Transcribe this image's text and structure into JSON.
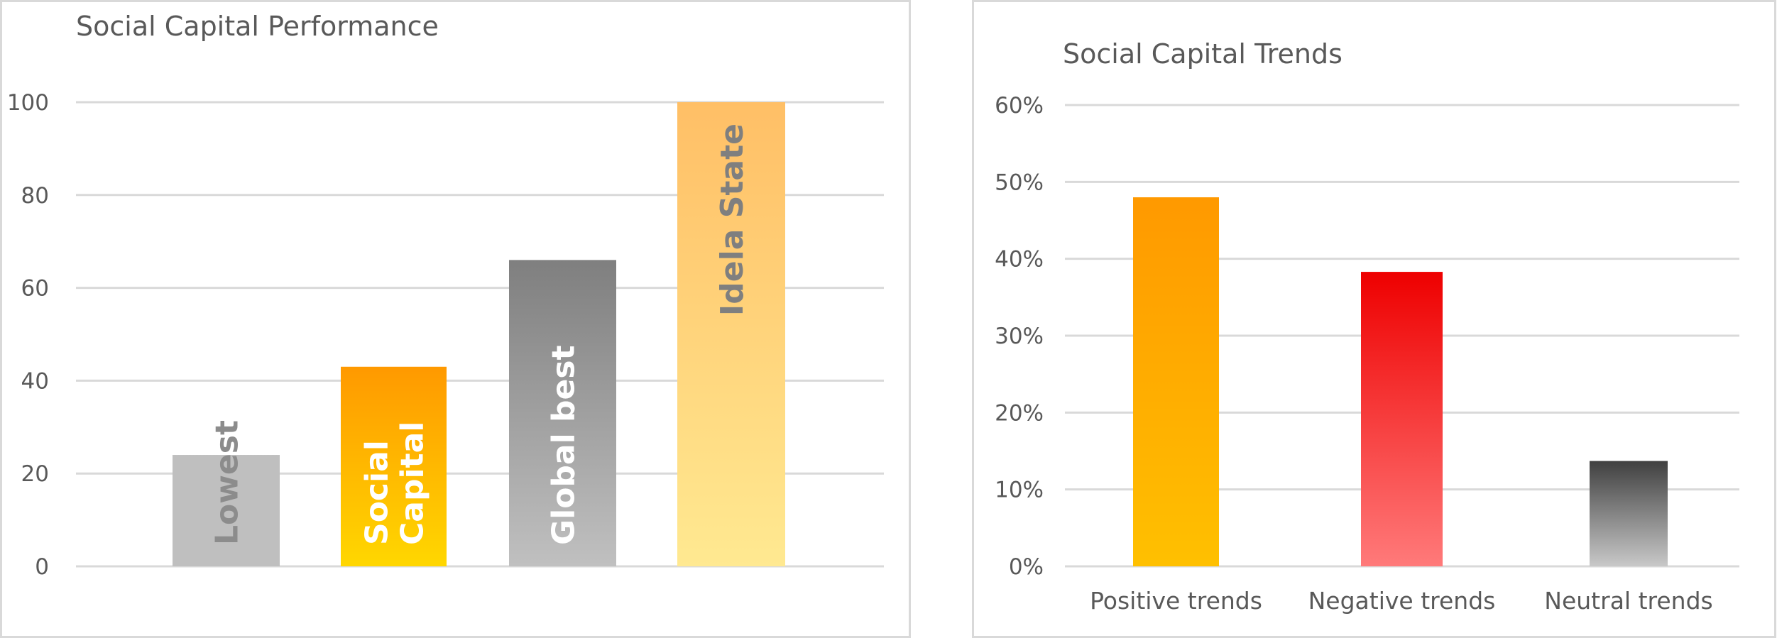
{
  "chart_data": [
    {
      "type": "bar",
      "title": "Social Capital Performance",
      "categories": [
        "Lowest",
        "Social Capital",
        "Global best",
        "Idela State"
      ],
      "category_label_lines": [
        [
          "Lowest"
        ],
        [
          "Social",
          "Capital"
        ],
        [
          "Global best"
        ],
        [
          "Idela State"
        ]
      ],
      "values": [
        24,
        43,
        66,
        100
      ],
      "ylim": [
        0,
        100
      ],
      "yticks": [
        0,
        20,
        40,
        60,
        80,
        100
      ],
      "ytick_labels": [
        "0",
        "20",
        "40",
        "60",
        "80",
        "100"
      ],
      "grid": true,
      "labels_inside_bars": true,
      "colors": [
        {
          "top": "#bfbfbf",
          "bottom": "#bfbfbf",
          "label": "#8c8c8c"
        },
        {
          "top": "#ff9900",
          "bottom": "#ffd700",
          "label": "#ffffff"
        },
        {
          "top": "#7f7f7f",
          "bottom": "#c0c0c0",
          "label": "#ffffff"
        },
        {
          "top": "#ffbf66",
          "bottom": "#ffe991",
          "label": "#7f7f7f"
        }
      ]
    },
    {
      "type": "bar",
      "title": "Social Capital Trends",
      "categories": [
        "Positive trends",
        "Negative trends",
        "Neutral trends"
      ],
      "values": [
        48,
        38.3,
        13.7
      ],
      "unit": "%",
      "ylim": [
        0,
        60
      ],
      "yticks": [
        0,
        10,
        20,
        30,
        40,
        50,
        60
      ],
      "ytick_labels": [
        "0%",
        "10%",
        "20%",
        "30%",
        "40%",
        "50%",
        "60%"
      ],
      "grid": true,
      "colors": [
        {
          "top": "#ff9900",
          "bottom": "#ffc000"
        },
        {
          "top": "#ee0000",
          "bottom": "#ff7a7a"
        },
        {
          "top": "#404040",
          "bottom": "#c8c8c8"
        }
      ]
    }
  ]
}
